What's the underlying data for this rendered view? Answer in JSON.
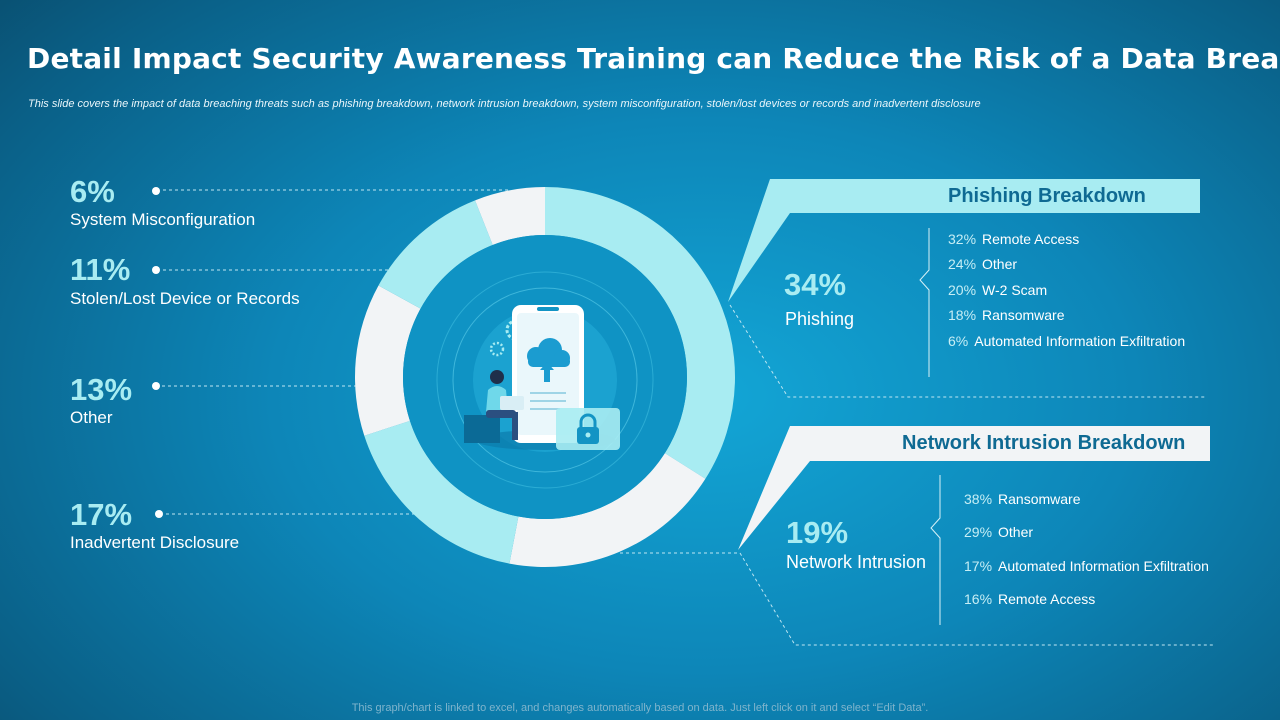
{
  "title": "Detail Impact Security Awareness Training can Reduce the Risk of a Data Breach",
  "subtitle": "This slide covers the impact of data breaching threats such as phishing breakdown, network intrusion breakdown, system misconfiguration, stolen/lost devices or records and inadvertent disclosure",
  "footer": "This graph/chart is linked to excel, and changes automatically based on data. Just left click on it and select “Edit Data”.",
  "colors": {
    "accent": "#a8ecf2",
    "ring_light": "#a8ecf2",
    "ring_white": "#f2f4f6",
    "title_box": "#0f6a93"
  },
  "icon": "security-cloud-phone-illustration",
  "chart_data": {
    "type": "pie",
    "variant": "donut",
    "slices": [
      {
        "label": "Phishing",
        "value": 34,
        "display": "34%"
      },
      {
        "label": "Network Intrusion",
        "value": 19,
        "display": "19%"
      },
      {
        "label": "Inadvertent Disclosure",
        "value": 17,
        "display": "17%"
      },
      {
        "label": "Other",
        "value": 13,
        "display": "13%"
      },
      {
        "label": "Stolen/Lost Device or Records",
        "value": 11,
        "display": "11%"
      },
      {
        "label": "System Misconfiguration",
        "value": 6,
        "display": "6%"
      }
    ],
    "breakdowns": [
      {
        "title": "Phishing Breakdown",
        "items": [
          {
            "pct": "32%",
            "label": "Remote Access"
          },
          {
            "pct": "24%",
            "label": "Other"
          },
          {
            "pct": "20%",
            "label": "W-2 Scam"
          },
          {
            "pct": "18%",
            "label": "Ransomware"
          },
          {
            "pct": "6%",
            "label": "Automated Information Exfiltration"
          }
        ]
      },
      {
        "title": "Network Intrusion Breakdown",
        "items": [
          {
            "pct": "38%",
            "label": "Ransomware"
          },
          {
            "pct": "29%",
            "label": "Other"
          },
          {
            "pct": "17%",
            "label": "Automated Information Exfiltration"
          },
          {
            "pct": "16%",
            "label": "Remote Access"
          }
        ]
      }
    ]
  }
}
